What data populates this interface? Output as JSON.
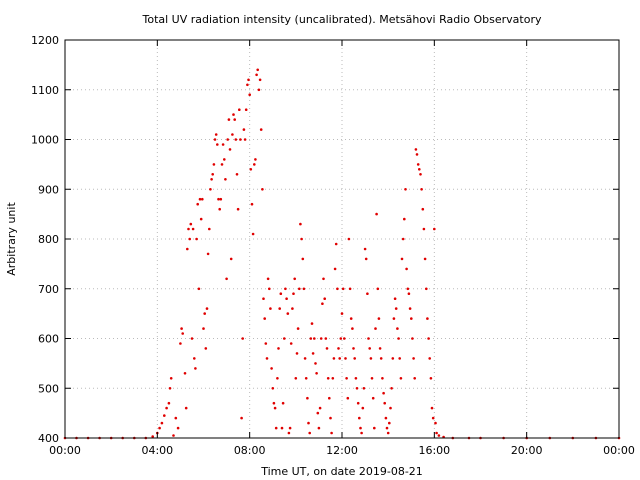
{
  "chart_data": {
    "type": "scatter",
    "title": "Total UV radiation intensity (uncalibrated). Metsähovi Radio Observatory",
    "xlabel": "Time UT, on date 2019-08-21",
    "ylabel": "Arbitrary unit",
    "xlim": [
      0,
      24
    ],
    "ylim": [
      400,
      1200
    ],
    "x_ticks": [
      {
        "value": 0,
        "label": "00:00"
      },
      {
        "value": 4,
        "label": "04:00"
      },
      {
        "value": 8,
        "label": "08:00"
      },
      {
        "value": 12,
        "label": "12:00"
      },
      {
        "value": 16,
        "label": "16:00"
      },
      {
        "value": 20,
        "label": "20:00"
      },
      {
        "value": 24,
        "label": "00:00"
      }
    ],
    "y_ticks": [
      400,
      500,
      600,
      700,
      800,
      900,
      1000,
      1100,
      1200
    ],
    "grid": true,
    "marker_color": "#e00000",
    "series": [
      {
        "points": [
          [
            0.0,
            400
          ],
          [
            0.5,
            400
          ],
          [
            1.0,
            400
          ],
          [
            1.5,
            400
          ],
          [
            2.0,
            400
          ],
          [
            2.5,
            400
          ],
          [
            3.0,
            400
          ],
          [
            3.5,
            400
          ],
          [
            3.8,
            403
          ],
          [
            4.0,
            410
          ],
          [
            4.1,
            420
          ],
          [
            4.2,
            430
          ],
          [
            4.3,
            445
          ],
          [
            4.4,
            460
          ],
          [
            4.5,
            470
          ],
          [
            4.55,
            500
          ],
          [
            4.6,
            520
          ],
          [
            4.7,
            405
          ],
          [
            4.8,
            440
          ],
          [
            4.9,
            420
          ],
          [
            5.0,
            590
          ],
          [
            5.05,
            620
          ],
          [
            5.1,
            610
          ],
          [
            5.2,
            530
          ],
          [
            5.25,
            460
          ],
          [
            5.3,
            780
          ],
          [
            5.35,
            820
          ],
          [
            5.4,
            800
          ],
          [
            5.45,
            830
          ],
          [
            5.5,
            600
          ],
          [
            5.55,
            820
          ],
          [
            5.6,
            560
          ],
          [
            5.65,
            540
          ],
          [
            5.7,
            800
          ],
          [
            5.75,
            870
          ],
          [
            5.8,
            700
          ],
          [
            5.85,
            880
          ],
          [
            5.9,
            840
          ],
          [
            5.95,
            880
          ],
          [
            6.0,
            620
          ],
          [
            6.05,
            650
          ],
          [
            6.1,
            580
          ],
          [
            6.15,
            660
          ],
          [
            6.2,
            770
          ],
          [
            6.25,
            820
          ],
          [
            6.3,
            900
          ],
          [
            6.35,
            920
          ],
          [
            6.4,
            930
          ],
          [
            6.45,
            950
          ],
          [
            6.5,
            1000
          ],
          [
            6.55,
            1010
          ],
          [
            6.6,
            990
          ],
          [
            6.65,
            880
          ],
          [
            6.7,
            860
          ],
          [
            6.75,
            880
          ],
          [
            6.8,
            950
          ],
          [
            6.85,
            990
          ],
          [
            6.9,
            960
          ],
          [
            6.95,
            920
          ],
          [
            7.0,
            720
          ],
          [
            7.05,
            1000
          ],
          [
            7.1,
            1040
          ],
          [
            7.15,
            980
          ],
          [
            7.2,
            760
          ],
          [
            7.25,
            1010
          ],
          [
            7.3,
            1050
          ],
          [
            7.35,
            1040
          ],
          [
            7.4,
            1000
          ],
          [
            7.45,
            930
          ],
          [
            7.5,
            860
          ],
          [
            7.55,
            1060
          ],
          [
            7.6,
            1000
          ],
          [
            7.65,
            440
          ],
          [
            7.7,
            600
          ],
          [
            7.75,
            1020
          ],
          [
            7.8,
            1000
          ],
          [
            7.85,
            1060
          ],
          [
            7.9,
            1110
          ],
          [
            7.95,
            1120
          ],
          [
            8.0,
            1090
          ],
          [
            8.05,
            940
          ],
          [
            8.1,
            870
          ],
          [
            8.15,
            810
          ],
          [
            8.2,
            950
          ],
          [
            8.25,
            960
          ],
          [
            8.3,
            1130
          ],
          [
            8.35,
            1140
          ],
          [
            8.4,
            1100
          ],
          [
            8.45,
            1120
          ],
          [
            8.5,
            1020
          ],
          [
            8.55,
            900
          ],
          [
            8.6,
            680
          ],
          [
            8.65,
            640
          ],
          [
            8.7,
            590
          ],
          [
            8.75,
            560
          ],
          [
            8.8,
            720
          ],
          [
            8.85,
            700
          ],
          [
            8.9,
            660
          ],
          [
            8.95,
            540
          ],
          [
            9.0,
            500
          ],
          [
            9.05,
            470
          ],
          [
            9.1,
            460
          ],
          [
            9.15,
            420
          ],
          [
            9.2,
            520
          ],
          [
            9.25,
            580
          ],
          [
            9.3,
            660
          ],
          [
            9.35,
            690
          ],
          [
            9.4,
            420
          ],
          [
            9.45,
            470
          ],
          [
            9.5,
            600
          ],
          [
            9.55,
            700
          ],
          [
            9.6,
            680
          ],
          [
            9.65,
            650
          ],
          [
            9.7,
            410
          ],
          [
            9.75,
            420
          ],
          [
            9.8,
            590
          ],
          [
            9.85,
            660
          ],
          [
            9.9,
            690
          ],
          [
            9.95,
            720
          ],
          [
            10.0,
            520
          ],
          [
            10.05,
            570
          ],
          [
            10.1,
            620
          ],
          [
            10.15,
            700
          ],
          [
            10.2,
            830
          ],
          [
            10.25,
            800
          ],
          [
            10.3,
            760
          ],
          [
            10.35,
            700
          ],
          [
            10.4,
            560
          ],
          [
            10.45,
            520
          ],
          [
            10.5,
            480
          ],
          [
            10.55,
            430
          ],
          [
            10.6,
            410
          ],
          [
            10.65,
            600
          ],
          [
            10.7,
            630
          ],
          [
            10.75,
            570
          ],
          [
            10.8,
            600
          ],
          [
            10.85,
            550
          ],
          [
            10.9,
            530
          ],
          [
            10.95,
            450
          ],
          [
            11.0,
            420
          ],
          [
            11.05,
            460
          ],
          [
            11.1,
            600
          ],
          [
            11.15,
            670
          ],
          [
            11.2,
            720
          ],
          [
            11.25,
            680
          ],
          [
            11.3,
            600
          ],
          [
            11.35,
            580
          ],
          [
            11.4,
            520
          ],
          [
            11.45,
            480
          ],
          [
            11.5,
            440
          ],
          [
            11.55,
            410
          ],
          [
            11.6,
            520
          ],
          [
            11.65,
            560
          ],
          [
            11.7,
            740
          ],
          [
            11.75,
            790
          ],
          [
            11.8,
            700
          ],
          [
            11.85,
            580
          ],
          [
            11.9,
            560
          ],
          [
            11.95,
            600
          ],
          [
            12.0,
            650
          ],
          [
            12.05,
            700
          ],
          [
            12.1,
            600
          ],
          [
            12.15,
            560
          ],
          [
            12.2,
            520
          ],
          [
            12.25,
            480
          ],
          [
            12.3,
            800
          ],
          [
            12.35,
            700
          ],
          [
            12.4,
            640
          ],
          [
            12.45,
            620
          ],
          [
            12.5,
            580
          ],
          [
            12.55,
            560
          ],
          [
            12.6,
            520
          ],
          [
            12.65,
            500
          ],
          [
            12.7,
            470
          ],
          [
            12.75,
            440
          ],
          [
            12.8,
            420
          ],
          [
            12.85,
            410
          ],
          [
            12.9,
            460
          ],
          [
            12.95,
            500
          ],
          [
            13.0,
            780
          ],
          [
            13.05,
            760
          ],
          [
            13.1,
            690
          ],
          [
            13.15,
            600
          ],
          [
            13.2,
            580
          ],
          [
            13.25,
            560
          ],
          [
            13.3,
            520
          ],
          [
            13.35,
            480
          ],
          [
            13.4,
            420
          ],
          [
            13.45,
            620
          ],
          [
            13.5,
            850
          ],
          [
            13.55,
            700
          ],
          [
            13.6,
            640
          ],
          [
            13.65,
            580
          ],
          [
            13.7,
            560
          ],
          [
            13.75,
            520
          ],
          [
            13.8,
            490
          ],
          [
            13.85,
            470
          ],
          [
            13.9,
            440
          ],
          [
            13.95,
            420
          ],
          [
            14.0,
            410
          ],
          [
            14.05,
            430
          ],
          [
            14.1,
            460
          ],
          [
            14.15,
            500
          ],
          [
            14.2,
            560
          ],
          [
            14.25,
            640
          ],
          [
            14.3,
            680
          ],
          [
            14.35,
            660
          ],
          [
            14.4,
            620
          ],
          [
            14.45,
            600
          ],
          [
            14.5,
            560
          ],
          [
            14.55,
            520
          ],
          [
            14.6,
            760
          ],
          [
            14.65,
            800
          ],
          [
            14.7,
            840
          ],
          [
            14.75,
            900
          ],
          [
            14.8,
            740
          ],
          [
            14.85,
            700
          ],
          [
            14.9,
            690
          ],
          [
            14.95,
            660
          ],
          [
            15.0,
            640
          ],
          [
            15.05,
            600
          ],
          [
            15.1,
            560
          ],
          [
            15.15,
            520
          ],
          [
            15.2,
            980
          ],
          [
            15.25,
            970
          ],
          [
            15.3,
            950
          ],
          [
            15.35,
            940
          ],
          [
            15.4,
            930
          ],
          [
            15.45,
            900
          ],
          [
            15.5,
            860
          ],
          [
            15.55,
            820
          ],
          [
            15.6,
            760
          ],
          [
            15.65,
            700
          ],
          [
            15.7,
            640
          ],
          [
            15.75,
            600
          ],
          [
            15.8,
            560
          ],
          [
            15.85,
            520
          ],
          [
            15.9,
            460
          ],
          [
            15.95,
            440
          ],
          [
            16.0,
            820
          ],
          [
            16.05,
            430
          ],
          [
            16.1,
            410
          ],
          [
            16.2,
            405
          ],
          [
            16.4,
            402
          ],
          [
            16.8,
            400
          ],
          [
            17.5,
            400
          ],
          [
            18.0,
            400
          ],
          [
            19.0,
            400
          ],
          [
            20.0,
            400
          ],
          [
            21.0,
            400
          ],
          [
            22.0,
            400
          ],
          [
            23.0,
            400
          ],
          [
            24.0,
            400
          ]
        ]
      }
    ]
  }
}
